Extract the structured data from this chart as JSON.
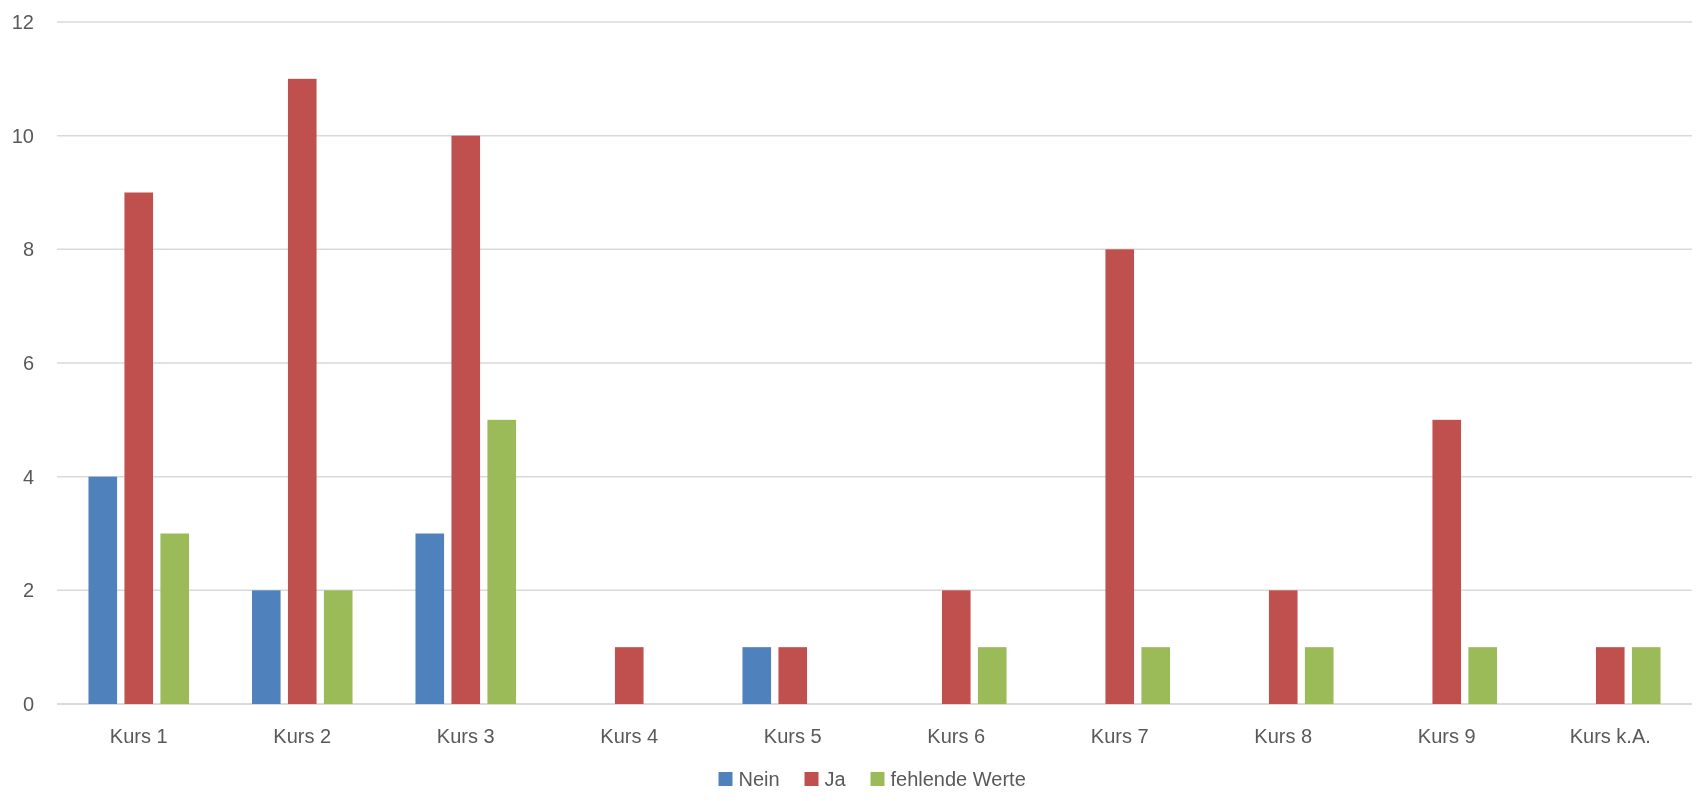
{
  "chart_data": {
    "type": "bar",
    "categories": [
      "Kurs 1",
      "Kurs 2",
      "Kurs 3",
      "Kurs 4",
      "Kurs 5",
      "Kurs 6",
      "Kurs 7",
      "Kurs 8",
      "Kurs 9",
      "Kurs k.A."
    ],
    "series": [
      {
        "name": "Nein",
        "color": "#4f81bd",
        "values": [
          4,
          2,
          3,
          null,
          1,
          null,
          null,
          null,
          null,
          null
        ]
      },
      {
        "name": "Ja",
        "color": "#c0504d",
        "values": [
          9,
          11,
          10,
          1,
          1,
          2,
          8,
          2,
          5,
          1
        ]
      },
      {
        "name": "fehlende Werte",
        "color": "#9bbb59",
        "values": [
          3,
          2,
          5,
          null,
          null,
          1,
          1,
          1,
          1,
          1
        ]
      }
    ],
    "ylim": [
      0,
      12
    ],
    "yticks": [
      0,
      2,
      4,
      6,
      8,
      10,
      12
    ],
    "grid": "y",
    "legend": "bottom"
  }
}
